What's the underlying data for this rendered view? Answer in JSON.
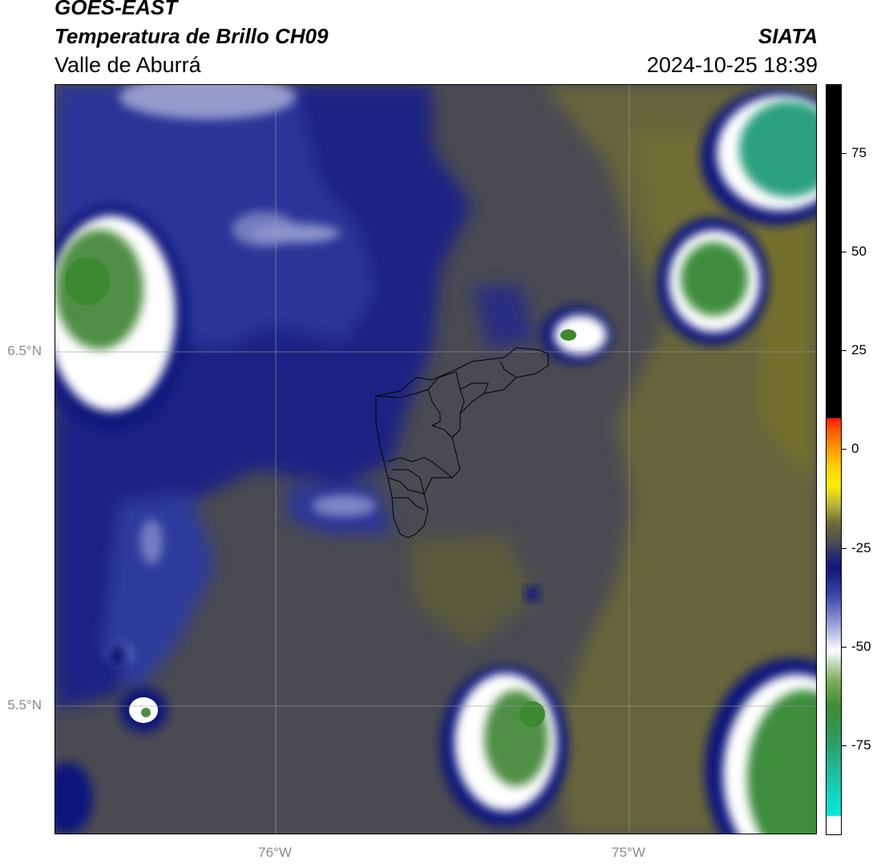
{
  "header": {
    "title": "GOES-EAST",
    "subtitle": "Temperatura de Brillo CH09",
    "region": "Valle de Aburrá",
    "source": "SIATA",
    "datetime": "2024-10-25 18:39"
  },
  "axes": {
    "lat_labels": [
      "6.5°N",
      "5.5°N"
    ],
    "lon_labels": [
      "76°W",
      "75°W"
    ]
  },
  "colorbar": {
    "ticks": [
      "75",
      "50",
      "25",
      "0",
      "-25",
      "-50",
      "-75"
    ],
    "colors": {
      "black_top": "#000000",
      "red": "#ff2200",
      "orange": "#ff8800",
      "yellow": "#ffee00",
      "olive": "#6e6b33",
      "gray": "#4d4d52",
      "navy": "#10167a",
      "blue": "#3a45a8",
      "white": "#ffffff",
      "green": "#3f8a32",
      "teal": "#20c8a8",
      "cyan": "#00ebe0"
    }
  }
}
